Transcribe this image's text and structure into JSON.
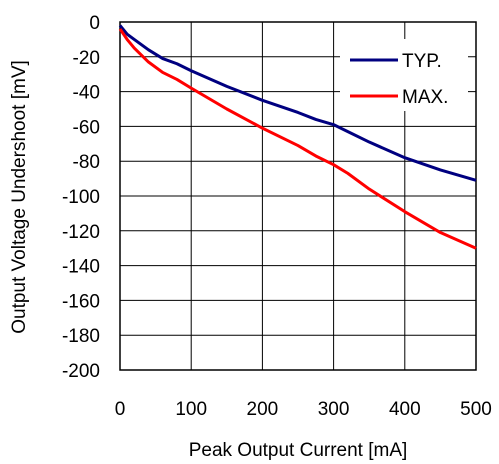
{
  "chart_data": {
    "type": "line",
    "title": "",
    "xlabel": "Peak Output Current [mA]",
    "ylabel": "Output Voltage Undershoot [mV]",
    "xlim": [
      0,
      500
    ],
    "ylim": [
      -200,
      0
    ],
    "x_ticks": [
      0,
      100,
      200,
      300,
      400,
      500
    ],
    "y_ticks": [
      0,
      -20,
      -40,
      -60,
      -80,
      -100,
      -120,
      -140,
      -160,
      -180,
      -200
    ],
    "x_tick_labels": [
      "0",
      "100",
      "200",
      "300",
      "400",
      "500"
    ],
    "y_tick_labels": [
      "0",
      "-20",
      "-40",
      "-60",
      "-80",
      "-100",
      "-120",
      "-140",
      "-160",
      "-180",
      "-200"
    ],
    "grid": true,
    "legend_position": "top-right",
    "series": [
      {
        "name": "TYP.",
        "color": "#000080",
        "x": [
          0,
          10,
          20,
          40,
          60,
          80,
          100,
          150,
          200,
          250,
          275,
          300,
          320,
          350,
          400,
          450,
          500
        ],
        "y": [
          -2,
          -7,
          -10,
          -16,
          -21,
          -24,
          -28,
          -37,
          -45,
          -52,
          -56,
          -59,
          -63,
          -69,
          -78,
          -85,
          -91
        ]
      },
      {
        "name": "MAX.",
        "color": "#ff0000",
        "x": [
          0,
          10,
          20,
          40,
          60,
          80,
          100,
          150,
          200,
          250,
          275,
          300,
          320,
          350,
          400,
          450,
          500
        ],
        "y": [
          -4,
          -10,
          -15,
          -23,
          -29,
          -33,
          -38,
          -50,
          -61,
          -71,
          -77,
          -82,
          -87,
          -96,
          -109,
          -121,
          -130
        ]
      }
    ]
  }
}
